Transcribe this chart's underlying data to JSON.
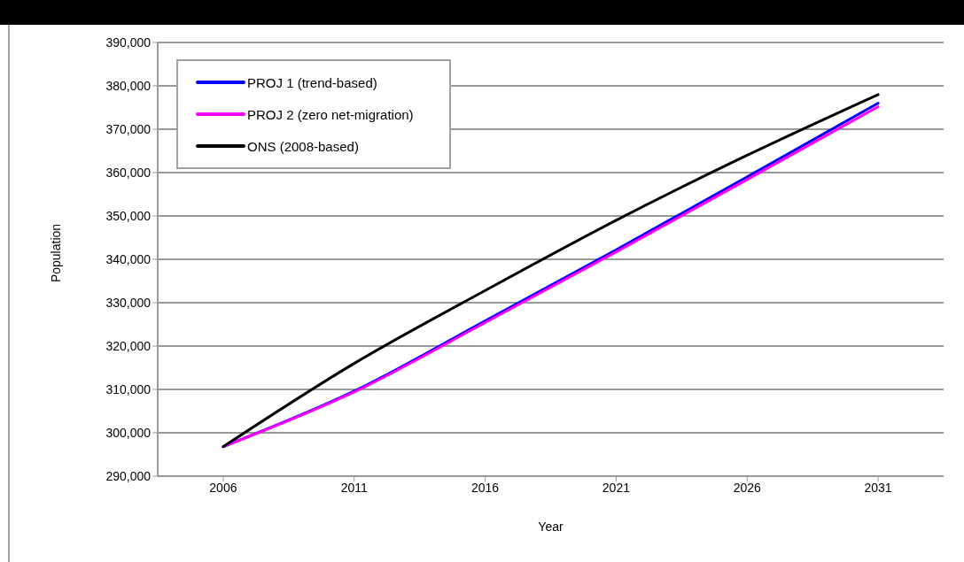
{
  "chart_data": {
    "type": "line",
    "xlabel": "Year",
    "ylabel": "Population",
    "categories": [
      "2006",
      "2011",
      "2016",
      "2021",
      "2026",
      "2031"
    ],
    "series": [
      {
        "name": "PROJ 1 (trend-based)",
        "color": "#0000ff",
        "values": [
          296800,
          309600,
          325800,
          342200,
          359000,
          376000
        ]
      },
      {
        "name": "PROJ 2 (zero net-migration)",
        "color": "#ff00ff",
        "values": [
          296800,
          309400,
          325400,
          341700,
          358400,
          375200
        ]
      },
      {
        "name": "ONS (2008-based)",
        "color": "#000000",
        "values": [
          296800,
          316000,
          332800,
          349000,
          364000,
          378000
        ]
      }
    ],
    "ylim": [
      290000,
      390000
    ],
    "yticks": [
      {
        "value": 290000,
        "label": "290,000"
      },
      {
        "value": 300000,
        "label": "300,000"
      },
      {
        "value": 310000,
        "label": "310,000"
      },
      {
        "value": 320000,
        "label": "320,000"
      },
      {
        "value": 330000,
        "label": "330,000"
      },
      {
        "value": 340000,
        "label": "340,000"
      },
      {
        "value": 350000,
        "label": "350,000"
      },
      {
        "value": 360000,
        "label": "360,000"
      },
      {
        "value": 370000,
        "label": "370,000"
      },
      {
        "value": 380000,
        "label": "380,000"
      },
      {
        "value": 390000,
        "label": "390,000"
      }
    ],
    "grid": "y",
    "legend": "top left",
    "marker": "none",
    "line_style": "solid"
  }
}
